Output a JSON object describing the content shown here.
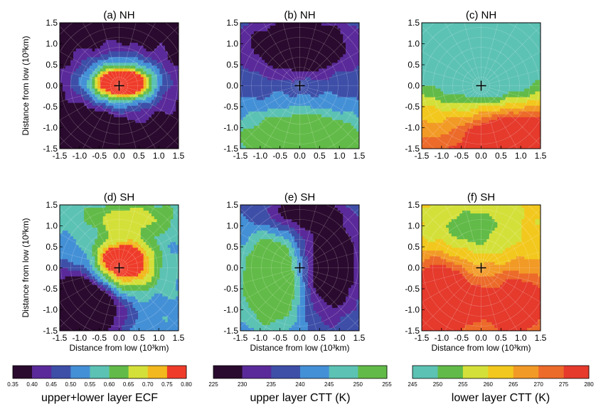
{
  "chart_data": {
    "type": "heatmap",
    "panels": [
      {
        "id": "a",
        "title": "(a) NH",
        "variable": "upper+lower layer ECF",
        "colorbar": 0,
        "blobs": [
          [
            0.05,
            0.08,
            0.72,
            0.42,
            0.78
          ],
          [
            0.15,
            0.05,
            0.32,
            0.17,
            0.9
          ],
          [
            -0.05,
            0.1,
            0.25,
            0.12,
            0.85
          ],
          [
            -1.1,
            -1.3,
            0.6,
            0.4,
            -0.6
          ]
        ],
        "base": 0.05,
        "center_val": 0.34
      },
      {
        "id": "b",
        "title": "(b) NH",
        "variable": "upper layer CTT",
        "colorbar": 1,
        "blobs": [
          [
            0.0,
            0.95,
            0.9,
            0.45,
            -0.7
          ],
          [
            0.0,
            -1.3,
            1.2,
            0.5,
            0.8
          ],
          [
            0.9,
            -1.3,
            0.3,
            0.2,
            0.6
          ]
        ],
        "base": 0.45,
        "center_val": 0.45
      },
      {
        "id": "c",
        "title": "(c) NH",
        "variable": "lower layer CTT",
        "colorbar": 2,
        "blobs": [
          [
            0.0,
            0.35,
            1.2,
            0.6,
            -0.6
          ],
          [
            0.15,
            0.15,
            0.3,
            0.2,
            -0.8
          ],
          [
            0.9,
            -1.4,
            0.8,
            0.5,
            0.9
          ]
        ],
        "gradient": -0.22,
        "base": 0.42,
        "center_val": 0.2
      },
      {
        "id": "d",
        "title": "(d) SH",
        "variable": "upper+lower layer ECF",
        "colorbar": 0,
        "blobs": [
          [
            0.1,
            0.05,
            0.55,
            0.45,
            0.72
          ],
          [
            0.1,
            0.2,
            0.25,
            0.15,
            0.9
          ],
          [
            -0.9,
            -0.9,
            0.7,
            0.6,
            -0.75
          ],
          [
            0.3,
            1.2,
            0.9,
            0.3,
            0.3
          ]
        ],
        "base": 0.42,
        "center_val": 0.4
      },
      {
        "id": "e",
        "title": "(e) SH",
        "variable": "upper layer CTT",
        "colorbar": 1,
        "blobs": [
          [
            -0.7,
            -0.3,
            0.5,
            0.7,
            0.85
          ],
          [
            0.8,
            0.05,
            0.55,
            0.9,
            -0.7
          ],
          [
            -0.1,
            1.3,
            0.7,
            0.3,
            -0.5
          ]
        ],
        "base": 0.55,
        "center_val": 0.55
      },
      {
        "id": "f",
        "title": "(f) SH",
        "variable": "lower layer CTT",
        "colorbar": 2,
        "blobs": [
          [
            -1.1,
            -0.8,
            0.6,
            0.7,
            0.85
          ],
          [
            0.9,
            -0.9,
            0.7,
            0.6,
            0.6
          ],
          [
            -0.3,
            0.9,
            0.9,
            0.5,
            -0.3
          ]
        ],
        "base": 0.5,
        "center_val": 0.5
      }
    ],
    "axes": {
      "xticks": [
        "-1.5",
        "-1.0",
        "-0.5",
        "0.0",
        "0.5",
        "1.0",
        "1.5"
      ],
      "yticks": [
        "1.5",
        "1.0",
        "0.5",
        "0.0",
        "-0.5",
        "-1.0",
        "-1.5"
      ],
      "range": [
        -1.5,
        1.5
      ],
      "ylabel": "Distance from low (10³km)",
      "xlabel": "Distance from low (10³km)"
    },
    "colorbars": [
      {
        "title": "upper+lower layer ECF",
        "ticks": [
          "0.35",
          "0.40",
          "0.45",
          "0.50",
          "0.55",
          "0.60",
          "0.65",
          "0.70",
          "0.75",
          "0.80"
        ],
        "colors": [
          "#2a0a2e",
          "#5a2a9a",
          "#3e4fa8",
          "#4490d6",
          "#5cc2b4",
          "#62bb48",
          "#d4e03a",
          "#f2b81e",
          "#ef3c2a"
        ]
      },
      {
        "title": "upper layer CTT (K)",
        "ticks": [
          "225",
          "230",
          "235",
          "240",
          "245",
          "250",
          "255"
        ],
        "colors": [
          "#2a0a2e",
          "#5a2a9a",
          "#3e4fa8",
          "#4490d6",
          "#5cc2b4",
          "#62bb48"
        ]
      },
      {
        "title": "lower layer CTT (K)",
        "ticks": [
          "245",
          "250",
          "255",
          "260",
          "265",
          "270",
          "275",
          "280"
        ],
        "colors": [
          "#5cc2b4",
          "#62bb48",
          "#d4e03a",
          "#f2c81e",
          "#f29a26",
          "#ec6a2a",
          "#e53a2c"
        ]
      }
    ]
  }
}
